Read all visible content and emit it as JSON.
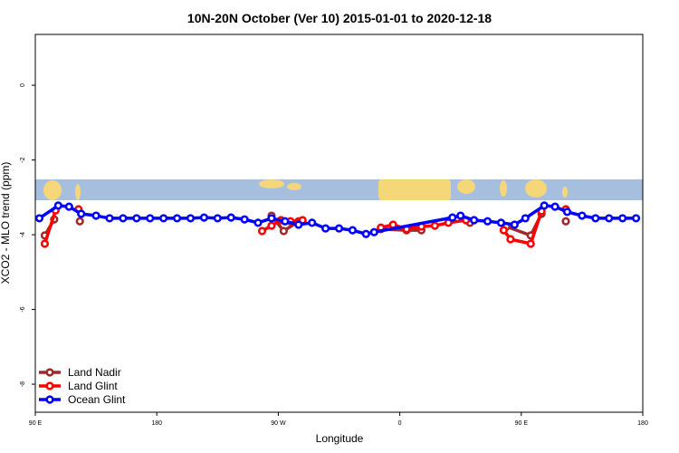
{
  "chart_data": {
    "type": "line",
    "title": "10N-20N October (Ver 10)   2015-01-01 to 2020-12-18",
    "x_label": "Longitude",
    "y_label": "XCO2 - MLO trend (ppm)",
    "xlim": [
      90,
      540
    ],
    "xticks": [
      {
        "value": 90,
        "label": "90 E"
      },
      {
        "value": 180,
        "label": "180"
      },
      {
        "value": 270,
        "label": "90 W"
      },
      {
        "value": 360,
        "label": "0"
      },
      {
        "value": 450,
        "label": "90 E"
      },
      {
        "value": 540,
        "label": "180"
      }
    ],
    "ylim": [
      -8.75,
      1.36
    ],
    "yticks": [
      0,
      -2,
      -4,
      -6,
      -8
    ],
    "legend": "bottomleft",
    "series": [
      {
        "name": "Land Nadir",
        "color": "#9e2a2b",
        "x": [
          97,
          104,
          null,
          123,
          null,
          265,
          274,
          285,
          null,
          346,
          365,
          376,
          null,
          412,
          null,
          439,
          457,
          465,
          null,
          483
        ],
        "values": [
          -4.02,
          -3.59,
          null,
          -3.64,
          null,
          -3.49,
          -3.9,
          -3.64,
          null,
          -3.85,
          -3.88,
          -3.88,
          null,
          -3.68,
          null,
          -3.78,
          -4.02,
          -3.44,
          null,
          -3.64
        ]
      },
      {
        "name": "Land Glint",
        "color": "#ff0000",
        "x": [
          97,
          105,
          null,
          122,
          null,
          258,
          265,
          272,
          279,
          288,
          null,
          346,
          355,
          365,
          376,
          386,
          396,
          409,
          null,
          437,
          442,
          457,
          465,
          null,
          483
        ],
        "values": [
          -4.24,
          -3.35,
          null,
          -3.32,
          null,
          -3.9,
          -3.76,
          -3.61,
          -3.64,
          -3.61,
          null,
          -3.81,
          -3.73,
          -3.85,
          -3.78,
          -3.76,
          -3.68,
          -3.61,
          null,
          -3.88,
          -4.12,
          -4.24,
          -3.37,
          null,
          -3.32
        ]
      },
      {
        "name": "Ocean Glint",
        "color": "#0000ff",
        "x": [
          93,
          107,
          115,
          124,
          135,
          145,
          155,
          165,
          175,
          185,
          195,
          205,
          215,
          225,
          235,
          245,
          255,
          265,
          275,
          285,
          295,
          305,
          315,
          325,
          335,
          341,
          399,
          405,
          415,
          425,
          435,
          445,
          453,
          467,
          475,
          484,
          495,
          505,
          515,
          525,
          535
        ],
        "values": [
          -3.56,
          -3.22,
          -3.25,
          -3.44,
          -3.49,
          -3.56,
          -3.56,
          -3.56,
          -3.56,
          -3.56,
          -3.56,
          -3.56,
          -3.54,
          -3.56,
          -3.54,
          -3.59,
          -3.68,
          -3.56,
          -3.64,
          -3.73,
          -3.68,
          -3.83,
          -3.83,
          -3.88,
          -3.98,
          -3.93,
          -3.54,
          -3.49,
          -3.61,
          -3.64,
          -3.68,
          -3.73,
          -3.56,
          -3.22,
          -3.25,
          -3.39,
          -3.49,
          -3.56,
          -3.56,
          -3.56,
          -3.56
        ]
      }
    ]
  }
}
